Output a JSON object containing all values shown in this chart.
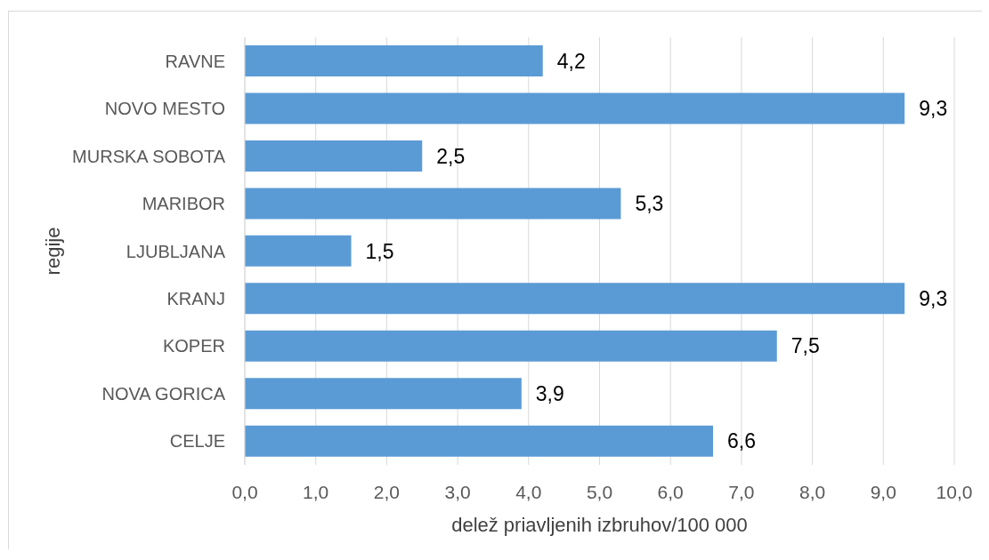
{
  "chart_data": {
    "type": "bar",
    "orientation": "horizontal",
    "categories": [
      "RAVNE",
      "NOVO MESTO",
      "MURSKA SOBOTA",
      "MARIBOR",
      "LJUBLJANA",
      "KRANJ",
      "KOPER",
      "NOVA GORICA",
      "CELJE"
    ],
    "values": [
      4.2,
      9.3,
      2.5,
      5.3,
      1.5,
      9.3,
      7.5,
      3.9,
      6.6
    ],
    "value_labels": [
      "4,2",
      "9,3",
      "2,5",
      "5,3",
      "1,5",
      "9,3",
      "7,5",
      "3,9",
      "6,6"
    ],
    "color": "#5b9bd5",
    "xlim": [
      0,
      10
    ],
    "xticks": [
      {
        "value": 0,
        "label": "0,0"
      },
      {
        "value": 1,
        "label": "1,0"
      },
      {
        "value": 2,
        "label": "2,0"
      },
      {
        "value": 3,
        "label": "3,0"
      },
      {
        "value": 4,
        "label": "4,0"
      },
      {
        "value": 5,
        "label": "5,0"
      },
      {
        "value": 6,
        "label": "6,0"
      },
      {
        "value": 7,
        "label": "7,0"
      },
      {
        "value": 8,
        "label": "8,0"
      },
      {
        "value": 9,
        "label": "9,0"
      },
      {
        "value": 10,
        "label": "10,0"
      }
    ],
    "xlabel": "delež priavljenih izbruhov/100 000",
    "ylabel": "regije",
    "grid": "x"
  }
}
